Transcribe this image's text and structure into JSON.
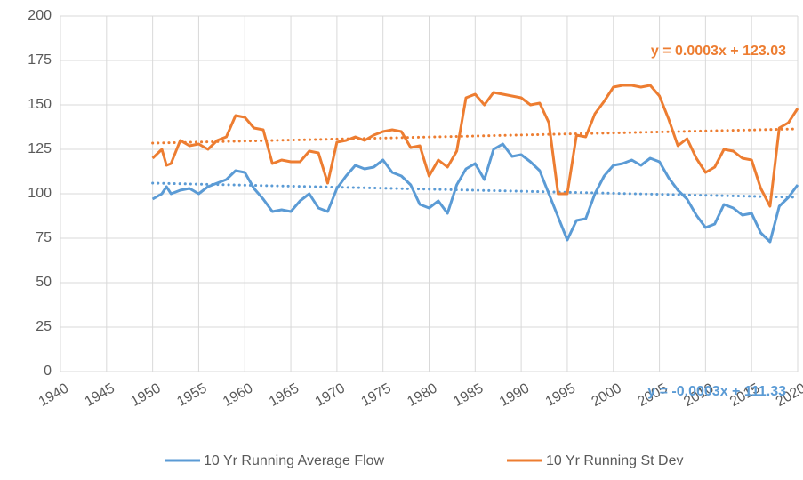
{
  "chart_data": {
    "type": "line",
    "x": [
      1950,
      1951,
      1951.5,
      1952,
      1953,
      1954,
      1955,
      1956,
      1957,
      1958,
      1959,
      1960,
      1961,
      1962,
      1963,
      1964,
      1965,
      1966,
      1967,
      1968,
      1969,
      1970,
      1971,
      1972,
      1973,
      1974,
      1975,
      1976,
      1977,
      1978,
      1979,
      1980,
      1981,
      1982,
      1983,
      1984,
      1985,
      1986,
      1987,
      1988,
      1989,
      1990,
      1991,
      1992,
      1993,
      1994,
      1995,
      1996,
      1997,
      1998,
      1999,
      2000,
      2001,
      2002,
      2003,
      2004,
      2005,
      2006,
      2007,
      2008,
      2009,
      2010,
      2011,
      2012,
      2013,
      2014,
      2015,
      2016,
      2017,
      2018,
      2019,
      2020
    ],
    "series": [
      {
        "name": "10 Yr Running Average Flow",
        "color": "#5b9bd5",
        "values": [
          97,
          100,
          104,
          100,
          102,
          103,
          100,
          104,
          106,
          108,
          113,
          112,
          103,
          97,
          90,
          91,
          90,
          96,
          100,
          92,
          90,
          103,
          110,
          116,
          114,
          115,
          119,
          112,
          110,
          105,
          94,
          92,
          96,
          89,
          105,
          114,
          117,
          108,
          125,
          128,
          121,
          122,
          118,
          113,
          100,
          87,
          74,
          85,
          86,
          100,
          110,
          116,
          117,
          119,
          116,
          120,
          118,
          109,
          102,
          97,
          88,
          81,
          83,
          94,
          92,
          88,
          89,
          78,
          73,
          93,
          98,
          105
        ]
      },
      {
        "name": "10 Yr Running St Dev",
        "color": "#ed7d31",
        "values": [
          120,
          125,
          116,
          117,
          130,
          127,
          128,
          125,
          130,
          132,
          144,
          143,
          137,
          136,
          117,
          119,
          118,
          118,
          124,
          123,
          106,
          129,
          130,
          132,
          130,
          133,
          135,
          136,
          135,
          126,
          127,
          110,
          119,
          115,
          124,
          154,
          156,
          150,
          157,
          156,
          155,
          154,
          150,
          151,
          140,
          100,
          100,
          133,
          132,
          145,
          152,
          160,
          161,
          161,
          160,
          161,
          155,
          142,
          127,
          131,
          120,
          112,
          115,
          125,
          124,
          120,
          119,
          103,
          93,
          137,
          140,
          148
        ]
      }
    ],
    "trendlines": [
      {
        "label": "y = -0.0003x + 111.33",
        "color": "#5b9bd5",
        "x": [
          1950,
          2020
        ],
        "values": [
          106,
          98
        ]
      },
      {
        "label": "y = 0.0003x + 123.03",
        "color": "#ed7d31",
        "x": [
          1950,
          2020
        ],
        "values": [
          128.5,
          136.5
        ]
      }
    ],
    "xlim": [
      1940,
      2020
    ],
    "xticks": [
      1940,
      1945,
      1950,
      1955,
      1960,
      1965,
      1970,
      1975,
      1980,
      1985,
      1990,
      1995,
      2000,
      2005,
      2010,
      2015,
      2020
    ],
    "ylim": [
      0,
      200
    ],
    "yticks": [
      0,
      25,
      50,
      75,
      100,
      125,
      150,
      175,
      200
    ],
    "grid": true,
    "legend": "bottom"
  }
}
